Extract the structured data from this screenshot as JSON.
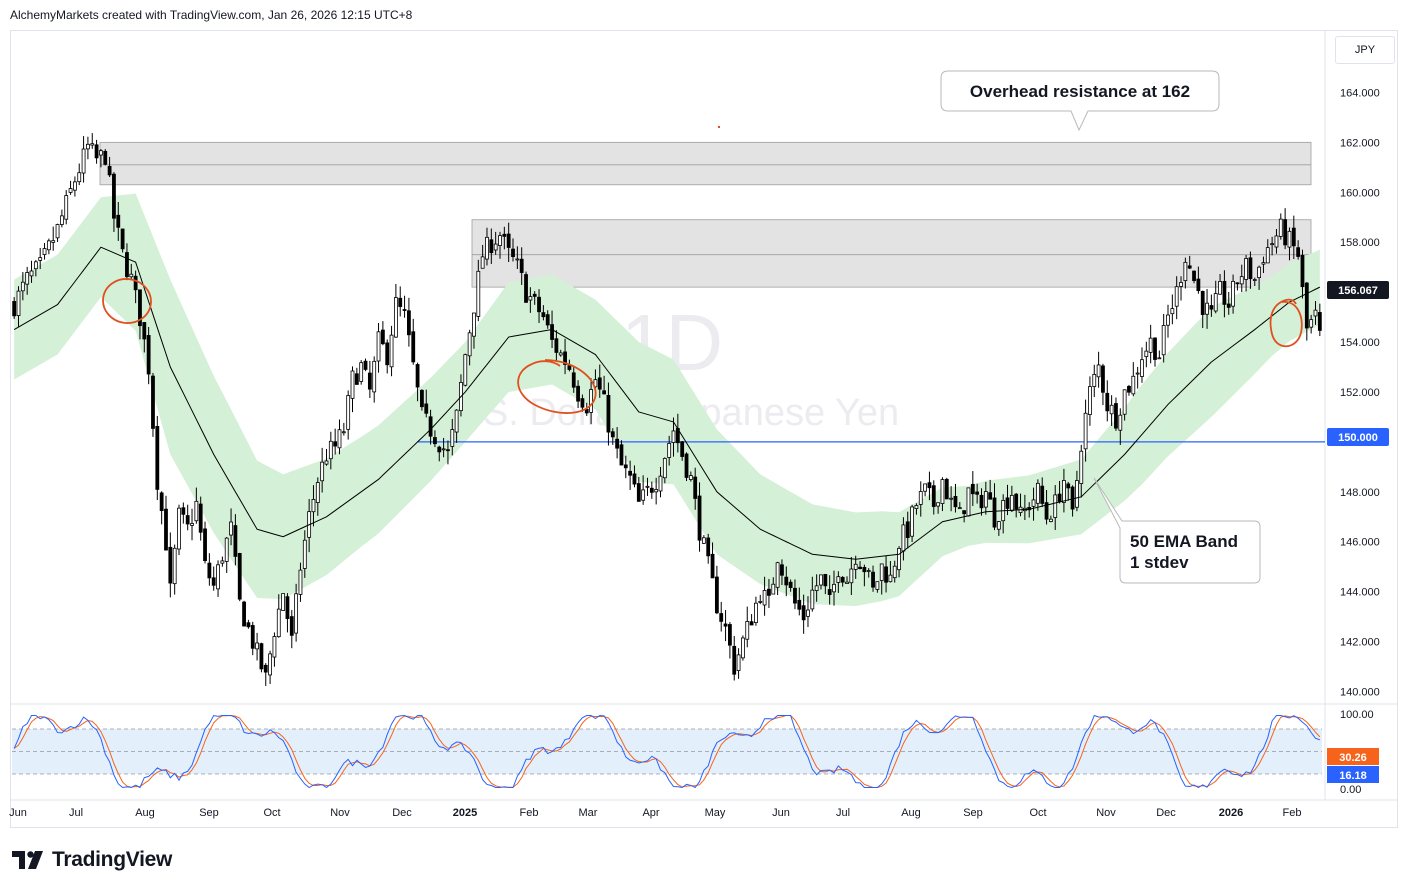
{
  "header": {
    "text": "AlchemyMarkets created with TradingView.com, Jan 26, 2026 12:15 UTC+8"
  },
  "currency": "JPY",
  "footer": {
    "brand": "TradingView"
  },
  "watermark": {
    "interval": "1D",
    "symbol": "U.S. Dollar / Japanese Yen"
  },
  "colors": {
    "candle": "#000000",
    "ema": "#000000",
    "band": "#d4f0d6",
    "zone": "#e3e3e3",
    "support_line": "#2962ff",
    "stoch_k": "#2962ff",
    "stoch_d": "#f7631b",
    "annotation": "#e0501f",
    "stoch_bg": "#e3f0fb"
  },
  "chart_data": [
    {
      "type": "candlestick",
      "symbol": "U.S. Dollar / Japanese Yen",
      "interval": "1D",
      "ylim": [
        139.5,
        166.5
      ],
      "price_ticks": [
        "164.000",
        "162.000",
        "160.000",
        "158.000",
        "156.000",
        "154.000",
        "152.000",
        "150.000",
        "148.000",
        "146.000",
        "144.000",
        "142.000",
        "140.000"
      ],
      "last_price": "156.067",
      "horizontal_line": {
        "value": 150.0,
        "label": "150.000"
      },
      "resistance_zones": [
        {
          "from": 160.3,
          "to": 162.0,
          "mid": 161.1
        },
        {
          "from": 156.2,
          "to": 158.9,
          "mid": 157.5
        }
      ],
      "time_labels": [
        {
          "label": "Jun",
          "bold": false
        },
        {
          "label": "Jul",
          "bold": false
        },
        {
          "label": "Aug",
          "bold": false
        },
        {
          "label": "Sep",
          "bold": false
        },
        {
          "label": "Oct",
          "bold": false
        },
        {
          "label": "Nov",
          "bold": false
        },
        {
          "label": "Dec",
          "bold": false
        },
        {
          "label": "2025",
          "bold": true
        },
        {
          "label": "Feb",
          "bold": false
        },
        {
          "label": "Mar",
          "bold": false
        },
        {
          "label": "Apr",
          "bold": false
        },
        {
          "label": "May",
          "bold": false
        },
        {
          "label": "Jun",
          "bold": false
        },
        {
          "label": "Jul",
          "bold": false
        },
        {
          "label": "Aug",
          "bold": false
        },
        {
          "label": "Sep",
          "bold": false
        },
        {
          "label": "Oct",
          "bold": false
        },
        {
          "label": "Nov",
          "bold": false
        },
        {
          "label": "Dec",
          "bold": false
        },
        {
          "label": "2026",
          "bold": true
        },
        {
          "label": "Feb",
          "bold": false
        }
      ],
      "price_path": [
        [
          0,
          155.5
        ],
        [
          3,
          156.5
        ],
        [
          6,
          157.0
        ],
        [
          10,
          158.5
        ],
        [
          14,
          160.5
        ],
        [
          17,
          161.8
        ],
        [
          19,
          161.3
        ],
        [
          21,
          161.5
        ],
        [
          23,
          159.0
        ],
        [
          25,
          157.5
        ],
        [
          27,
          156.5
        ],
        [
          29,
          155.0
        ],
        [
          31,
          153.0
        ],
        [
          33,
          148.5
        ],
        [
          35,
          146.0
        ],
        [
          36,
          144.0
        ],
        [
          38,
          147.0
        ],
        [
          40,
          146.5
        ],
        [
          42,
          147.5
        ],
        [
          44,
          145.0
        ],
        [
          46,
          144.2
        ],
        [
          48,
          145.5
        ],
        [
          50,
          146.5
        ],
        [
          52,
          143.5
        ],
        [
          54,
          142.5
        ],
        [
          56,
          141.5
        ],
        [
          58,
          140.5
        ],
        [
          60,
          142.5
        ],
        [
          62,
          144.0
        ],
        [
          64,
          142.0
        ],
        [
          66,
          145.0
        ],
        [
          68,
          147.0
        ],
        [
          70,
          148.5
        ],
        [
          72,
          149.5
        ],
        [
          74,
          149.8
        ],
        [
          76,
          150.5
        ],
        [
          78,
          152.5
        ],
        [
          80,
          153.0
        ],
        [
          82,
          152.0
        ],
        [
          84,
          154.0
        ],
        [
          86,
          153.5
        ],
        [
          88,
          155.5
        ],
        [
          90,
          155.0
        ],
        [
          92,
          153.0
        ],
        [
          94,
          151.0
        ],
        [
          96,
          150.5
        ],
        [
          98,
          150.0
        ],
        [
          100,
          149.5
        ],
        [
          102,
          151.0
        ],
        [
          104,
          153.5
        ],
        [
          106,
          155.5
        ],
        [
          108,
          157.5
        ],
        [
          110,
          158.0
        ],
        [
          112,
          158.3
        ],
        [
          114,
          157.5
        ],
        [
          116,
          157.0
        ],
        [
          118,
          156.0
        ],
        [
          120,
          155.5
        ],
        [
          122,
          155.0
        ],
        [
          124,
          154.0
        ],
        [
          126,
          153.5
        ],
        [
          128,
          153.0
        ],
        [
          130,
          152.0
        ],
        [
          132,
          151.5
        ],
        [
          134,
          152.5
        ],
        [
          136,
          151.5
        ],
        [
          138,
          150.0
        ],
        [
          140,
          149.0
        ],
        [
          142,
          148.5
        ],
        [
          144,
          147.5
        ],
        [
          146,
          148.0
        ],
        [
          148,
          148.5
        ],
        [
          150,
          149.5
        ],
        [
          152,
          150.5
        ],
        [
          154,
          149.5
        ],
        [
          156,
          148.5
        ],
        [
          158,
          146.5
        ],
        [
          160,
          145.0
        ],
        [
          162,
          143.5
        ],
        [
          164,
          142.5
        ],
        [
          166,
          141.0
        ],
        [
          168,
          142.0
        ],
        [
          170,
          143.0
        ],
        [
          172,
          144.0
        ],
        [
          174,
          143.5
        ],
        [
          176,
          145.5
        ],
        [
          178,
          144.5
        ],
        [
          180,
          143.5
        ],
        [
          182,
          143.0
        ],
        [
          184,
          144.0
        ],
        [
          186,
          144.5
        ],
        [
          188,
          143.5
        ],
        [
          190,
          145.0
        ],
        [
          192,
          144.5
        ],
        [
          194,
          145.5
        ],
        [
          196,
          145.0
        ],
        [
          198,
          144.0
        ],
        [
          200,
          145.0
        ],
        [
          202,
          144.5
        ],
        [
          204,
          146.0
        ],
        [
          206,
          146.5
        ],
        [
          208,
          147.5
        ],
        [
          210,
          148.0
        ],
        [
          212,
          147.5
        ],
        [
          214,
          148.5
        ],
        [
          216,
          147.5
        ],
        [
          218,
          147.0
        ],
        [
          220,
          148.0
        ],
        [
          222,
          147.5
        ],
        [
          224,
          148.0
        ],
        [
          226,
          147.0
        ],
        [
          228,
          147.5
        ],
        [
          230,
          148.0
        ],
        [
          232,
          147.0
        ],
        [
          234,
          147.5
        ],
        [
          236,
          148.0
        ],
        [
          238,
          147.0
        ],
        [
          240,
          147.5
        ],
        [
          242,
          148.5
        ],
        [
          244,
          147.0
        ],
        [
          246,
          150.0
        ],
        [
          248,
          152.0
        ],
        [
          250,
          153.0
        ],
        [
          252,
          151.5
        ],
        [
          254,
          151.0
        ],
        [
          256,
          152.0
        ],
        [
          258,
          152.5
        ],
        [
          260,
          153.5
        ],
        [
          262,
          154.0
        ],
        [
          264,
          153.5
        ],
        [
          266,
          155.0
        ],
        [
          268,
          156.0
        ],
        [
          270,
          157.5
        ],
        [
          272,
          156.5
        ],
        [
          274,
          155.5
        ],
        [
          276,
          155.0
        ],
        [
          278,
          156.0
        ],
        [
          280,
          155.5
        ],
        [
          282,
          156.5
        ],
        [
          284,
          157.0
        ],
        [
          286,
          156.5
        ],
        [
          288,
          157.5
        ],
        [
          290,
          158.0
        ],
        [
          292,
          158.5
        ],
        [
          294,
          158.0
        ],
        [
          296,
          157.5
        ],
        [
          298,
          154.5
        ],
        [
          300,
          155.0
        ],
        [
          301,
          154.2
        ]
      ],
      "ema50": [
        [
          0,
          154.5
        ],
        [
          10,
          155.5
        ],
        [
          20,
          157.8
        ],
        [
          28,
          157.2
        ],
        [
          36,
          153.0
        ],
        [
          46,
          149.5
        ],
        [
          56,
          146.5
        ],
        [
          62,
          146.2
        ],
        [
          72,
          147.0
        ],
        [
          84,
          148.5
        ],
        [
          96,
          150.5
        ],
        [
          104,
          152.0
        ],
        [
          114,
          154.2
        ],
        [
          124,
          154.5
        ],
        [
          134,
          153.5
        ],
        [
          144,
          151.2
        ],
        [
          152,
          150.8
        ],
        [
          162,
          148.0
        ],
        [
          172,
          146.5
        ],
        [
          184,
          145.5
        ],
        [
          194,
          145.3
        ],
        [
          204,
          145.5
        ],
        [
          214,
          146.8
        ],
        [
          224,
          147.2
        ],
        [
          234,
          147.3
        ],
        [
          246,
          147.8
        ],
        [
          256,
          149.5
        ],
        [
          266,
          151.5
        ],
        [
          276,
          153.2
        ],
        [
          286,
          154.5
        ],
        [
          294,
          155.6
        ],
        [
          301,
          156.2
        ]
      ],
      "band_stdev": [
        [
          0,
          2.0
        ],
        [
          20,
          2.0
        ],
        [
          36,
          3.5
        ],
        [
          50,
          3.0
        ],
        [
          62,
          2.5
        ],
        [
          80,
          2.2
        ],
        [
          104,
          2.0
        ],
        [
          114,
          2.2
        ],
        [
          124,
          2.2
        ],
        [
          134,
          2.2
        ],
        [
          144,
          2.8
        ],
        [
          152,
          2.5
        ],
        [
          162,
          2.5
        ],
        [
          172,
          2.2
        ],
        [
          184,
          2.0
        ],
        [
          200,
          1.8
        ],
        [
          220,
          1.2
        ],
        [
          246,
          1.5
        ],
        [
          260,
          2.0
        ],
        [
          276,
          2.2
        ],
        [
          290,
          1.6
        ],
        [
          301,
          1.5
        ]
      ]
    },
    {
      "type": "line",
      "indicator": "Stochastic",
      "ylim": [
        0,
        100
      ],
      "ticks": [
        "100.00",
        "0.00"
      ],
      "levels": [
        80,
        50,
        20
      ],
      "series": [
        {
          "last": "30.26",
          "color": "#f7631b"
        },
        {
          "last": "16.18",
          "color": "#2962ff"
        }
      ]
    }
  ],
  "annotations": [
    {
      "text": "Overhead resistance at 162"
    },
    {
      "lines": [
        "50 EMA Band",
        "1 stdev"
      ]
    }
  ]
}
